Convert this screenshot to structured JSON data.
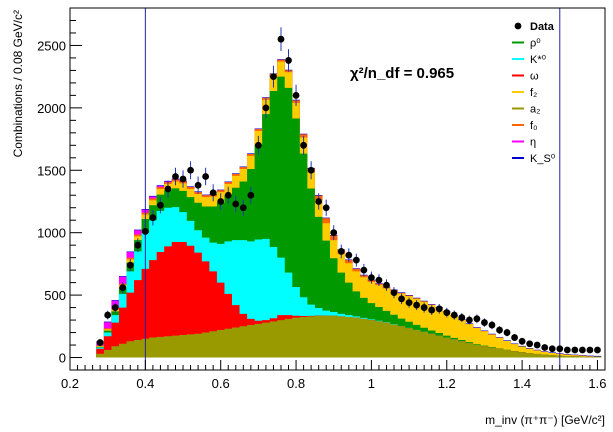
{
  "chart_data": {
    "type": "area",
    "title": "",
    "xlabel": "m_inv (π⁺π⁻) [GeV/c²]",
    "ylabel": "Combinations / 0.08 GeV/c²",
    "xlim": [
      0.2,
      1.62
    ],
    "ylim": [
      -100,
      2800
    ],
    "xticks": [
      "0.2",
      "0.4",
      "0.6",
      "0.8",
      "1",
      "1.2",
      "1.4",
      "1.6"
    ],
    "yticks": [
      "0",
      "500",
      "1000",
      "1500",
      "2000",
      "2500"
    ],
    "annotation": "χ²/n_df = 0.965",
    "vlines": [
      0.4,
      1.5
    ],
    "x": [
      0.28,
      0.3,
      0.32,
      0.34,
      0.36,
      0.38,
      0.4,
      0.42,
      0.44,
      0.46,
      0.48,
      0.5,
      0.52,
      0.54,
      0.56,
      0.58,
      0.6,
      0.62,
      0.64,
      0.66,
      0.68,
      0.7,
      0.72,
      0.74,
      0.76,
      0.78,
      0.8,
      0.82,
      0.84,
      0.86,
      0.88,
      0.9,
      0.92,
      0.94,
      0.96,
      0.98,
      1.0,
      1.02,
      1.04,
      1.06,
      1.08,
      1.1,
      1.12,
      1.14,
      1.16,
      1.18,
      1.2,
      1.22,
      1.24,
      1.26,
      1.28,
      1.3,
      1.32,
      1.34,
      1.36,
      1.38,
      1.4,
      1.42,
      1.44,
      1.46,
      1.48,
      1.5,
      1.52,
      1.54,
      1.56,
      1.58,
      1.6
    ],
    "series": [
      {
        "name": "a_2",
        "color": "#999900",
        "values": [
          30,
          60,
          90,
          110,
          130,
          140,
          150,
          160,
          165,
          170,
          175,
          180,
          185,
          190,
          200,
          210,
          220,
          230,
          240,
          250,
          260,
          270,
          280,
          290,
          300,
          310,
          320,
          325,
          330,
          335,
          335,
          335,
          330,
          325,
          320,
          310,
          300,
          290,
          280,
          265,
          250,
          235,
          220,
          205,
          190,
          175,
          160,
          145,
          130,
          115,
          100,
          90,
          80,
          70,
          60,
          50,
          42,
          35,
          28,
          22,
          18,
          15,
          12,
          10,
          8,
          6,
          5
        ]
      },
      {
        "name": "ω",
        "color": "#ff0000",
        "values": [
          40,
          110,
          190,
          290,
          390,
          480,
          560,
          620,
          680,
          720,
          750,
          745,
          710,
          650,
          570,
          480,
          380,
          280,
          180,
          100,
          50,
          25,
          20,
          25,
          40,
          30,
          15,
          8,
          4,
          2,
          1,
          0,
          0,
          0,
          0,
          0,
          0,
          0,
          0,
          0,
          0,
          0,
          0,
          0,
          0,
          0,
          0,
          0,
          0,
          0,
          0,
          0,
          0,
          0,
          0,
          0,
          0,
          0,
          0,
          0,
          0,
          0,
          0,
          0,
          0,
          0,
          0
        ]
      },
      {
        "name": "K*⁰",
        "color": "#00ffff",
        "values": [
          10,
          30,
          60,
          110,
          170,
          230,
          290,
          320,
          330,
          310,
          280,
          240,
          200,
          180,
          190,
          230,
          310,
          420,
          520,
          590,
          620,
          650,
          650,
          570,
          460,
          340,
          230,
          150,
          90,
          60,
          40,
          30,
          20,
          15,
          10,
          8,
          6,
          5,
          4,
          3,
          2,
          2,
          1,
          1,
          1,
          1,
          0,
          0,
          0,
          0,
          0,
          0,
          0,
          0,
          0,
          0,
          0,
          0,
          0,
          0,
          0,
          0,
          0,
          0,
          0,
          0,
          0
        ]
      },
      {
        "name": "ρ⁰",
        "color": "#009900",
        "values": [
          5,
          15,
          30,
          50,
          70,
          90,
          110,
          120,
          130,
          140,
          150,
          170,
          190,
          220,
          250,
          290,
          330,
          370,
          420,
          470,
          580,
          760,
          1000,
          1250,
          1450,
          1480,
          1350,
          1150,
          930,
          730,
          560,
          430,
          330,
          260,
          200,
          160,
          130,
          110,
          90,
          75,
          60,
          50,
          40,
          32,
          25,
          20,
          15,
          12,
          10,
          8,
          6,
          5,
          4,
          3,
          2,
          2,
          1,
          1,
          1,
          1,
          0,
          0,
          0,
          0,
          0,
          0,
          0
        ]
      },
      {
        "name": "f_2",
        "color": "#ffcc00",
        "values": [
          5,
          10,
          15,
          20,
          25,
          30,
          35,
          40,
          45,
          50,
          55,
          60,
          65,
          70,
          75,
          80,
          85,
          90,
          95,
          100,
          105,
          110,
          115,
          120,
          120,
          125,
          125,
          130,
          130,
          135,
          140,
          145,
          150,
          155,
          160,
          165,
          170,
          175,
          180,
          190,
          200,
          205,
          210,
          210,
          205,
          200,
          190,
          175,
          160,
          145,
          130,
          115,
          100,
          85,
          70,
          55,
          45,
          35,
          28,
          22,
          18,
          14,
          10,
          8,
          6,
          4,
          3
        ]
      },
      {
        "name": "f_0",
        "color": "#ff6600",
        "values": [
          5,
          8,
          10,
          12,
          14,
          15,
          15,
          15,
          15,
          15,
          15,
          15,
          15,
          15,
          15,
          15,
          15,
          15,
          15,
          15,
          15,
          15,
          15,
          15,
          15,
          15,
          20,
          25,
          30,
          35,
          40,
          35,
          30,
          25,
          20,
          15,
          12,
          10,
          8,
          6,
          5,
          4,
          3,
          2,
          2,
          2,
          1,
          1,
          1,
          1,
          1,
          1,
          1,
          0,
          0,
          0,
          0,
          0,
          0,
          0,
          0,
          0,
          0,
          0,
          0,
          0,
          0
        ]
      },
      {
        "name": "η",
        "color": "#ff00ff",
        "values": [
          30,
          50,
          60,
          55,
          45,
          35,
          25,
          15,
          10,
          5,
          3,
          2,
          1,
          1,
          0,
          0,
          0,
          0,
          0,
          0,
          0,
          0,
          0,
          0,
          0,
          0,
          0,
          0,
          0,
          0,
          0,
          0,
          0,
          0,
          0,
          0,
          0,
          0,
          0,
          0,
          0,
          0,
          0,
          0,
          0,
          0,
          0,
          0,
          0,
          0,
          0,
          0,
          0,
          0,
          0,
          0,
          0,
          0,
          0,
          0,
          0,
          0,
          0,
          0,
          0,
          0,
          0
        ]
      },
      {
        "name": "K_S⁰",
        "color": "#0000cc",
        "values": [
          5,
          5,
          5,
          5,
          5,
          5,
          5,
          5,
          5,
          5,
          5,
          5,
          5,
          5,
          5,
          5,
          5,
          5,
          5,
          5,
          5,
          5,
          5,
          5,
          5,
          5,
          5,
          5,
          5,
          5,
          5,
          5,
          5,
          5,
          5,
          5,
          5,
          5,
          5,
          5,
          5,
          5,
          5,
          5,
          5,
          5,
          5,
          5,
          5,
          5,
          5,
          5,
          5,
          5,
          5,
          5,
          5,
          5,
          5,
          5,
          5,
          5,
          5,
          5,
          5,
          5,
          5
        ]
      }
    ],
    "data_points": {
      "name": "Data",
      "x": [
        0.28,
        0.3,
        0.32,
        0.34,
        0.36,
        0.38,
        0.4,
        0.42,
        0.44,
        0.46,
        0.48,
        0.5,
        0.52,
        0.54,
        0.56,
        0.58,
        0.6,
        0.62,
        0.64,
        0.66,
        0.68,
        0.7,
        0.72,
        0.74,
        0.76,
        0.78,
        0.8,
        0.82,
        0.84,
        0.86,
        0.88,
        0.9,
        0.92,
        0.94,
        0.96,
        0.98,
        1.0,
        1.02,
        1.04,
        1.06,
        1.08,
        1.1,
        1.12,
        1.14,
        1.16,
        1.18,
        1.2,
        1.22,
        1.24,
        1.26,
        1.28,
        1.3,
        1.32,
        1.34,
        1.36,
        1.38,
        1.4,
        1.42,
        1.44,
        1.46,
        1.48,
        1.5,
        1.52,
        1.54,
        1.56,
        1.58,
        1.6
      ],
      "y": [
        120,
        340,
        400,
        560,
        740,
        900,
        1010,
        1120,
        1220,
        1350,
        1450,
        1430,
        1500,
        1380,
        1450,
        1320,
        1250,
        1300,
        1230,
        1200,
        1300,
        1700,
        2000,
        2250,
        2550,
        2380,
        2100,
        1700,
        1500,
        1250,
        1200,
        1000,
        850,
        820,
        780,
        700,
        640,
        620,
        580,
        520,
        470,
        440,
        420,
        400,
        380,
        390,
        360,
        340,
        320,
        300,
        310,
        280,
        260,
        220,
        200,
        160,
        130,
        110,
        100,
        80,
        70,
        70,
        60,
        60,
        60,
        60,
        60
      ],
      "yerr": [
        25,
        35,
        40,
        45,
        50,
        55,
        60,
        62,
        65,
        68,
        70,
        70,
        72,
        70,
        70,
        68,
        66,
        67,
        65,
        65,
        67,
        75,
        82,
        88,
        95,
        90,
        85,
        76,
        72,
        66,
        65,
        60,
        55,
        54,
        52,
        50,
        48,
        47,
        46,
        44,
        42,
        41,
        40,
        40,
        39,
        39,
        38,
        37,
        36,
        35,
        35,
        34,
        33,
        31,
        30,
        28,
        27,
        26,
        25,
        24,
        23,
        23,
        22,
        22,
        22,
        22,
        22
      ]
    },
    "legend": {
      "placement": "top-right",
      "entries": [
        {
          "label": "Data",
          "color": "#000000",
          "marker": "dot"
        },
        {
          "label": "ρ⁰",
          "color": "#009900"
        },
        {
          "label": "K*⁰",
          "color": "#00ffff"
        },
        {
          "label": "ω",
          "color": "#ff0000"
        },
        {
          "label": "f₂",
          "color": "#ffcc00"
        },
        {
          "label": "a₂",
          "color": "#999900"
        },
        {
          "label": "f₀",
          "color": "#ff6600"
        },
        {
          "label": "η",
          "color": "#ff00ff"
        },
        {
          "label": "K_S⁰",
          "color": "#0000cc"
        }
      ]
    },
    "grid": false
  }
}
